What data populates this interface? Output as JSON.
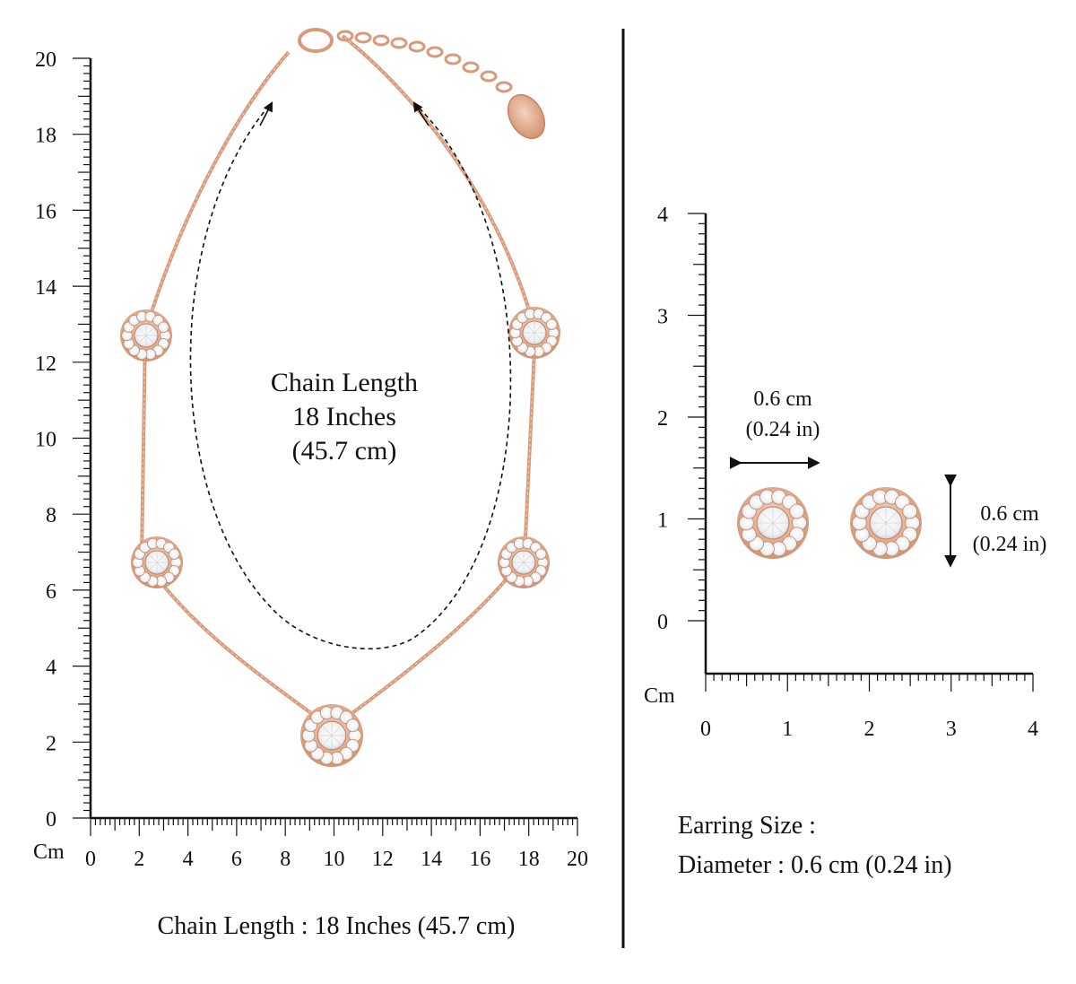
{
  "necklace_panel": {
    "ruler_unit": "Cm",
    "y_ticks": [
      "0",
      "2",
      "4",
      "6",
      "8",
      "10",
      "12",
      "14",
      "16",
      "18",
      "20"
    ],
    "x_ticks": [
      "0",
      "2",
      "4",
      "6",
      "8",
      "10",
      "12",
      "14",
      "16",
      "18",
      "20"
    ],
    "inner_label": [
      "Chain Length",
      "18 Inches",
      "(45.7 cm)"
    ],
    "caption": "Chain Length : 18 Inches (45.7 cm)"
  },
  "earring_panel": {
    "ruler_unit": "Cm",
    "y_ticks": [
      "0",
      "1",
      "2",
      "3",
      "4"
    ],
    "x_ticks": [
      "0",
      "1",
      "2",
      "3",
      "4"
    ],
    "width_label": [
      "0.6 cm",
      "(0.24 in)"
    ],
    "height_label": [
      "0.6 cm",
      "(0.24 in)"
    ],
    "size_title": "Earring Size :",
    "size_detail": "Diameter : 0.6 cm (0.24 in)"
  },
  "colors": {
    "rose_gold": "#d79a7a",
    "rose_gold_light": "#f2c9b2",
    "stone": "#f4f4f4",
    "ink": "#111111"
  }
}
